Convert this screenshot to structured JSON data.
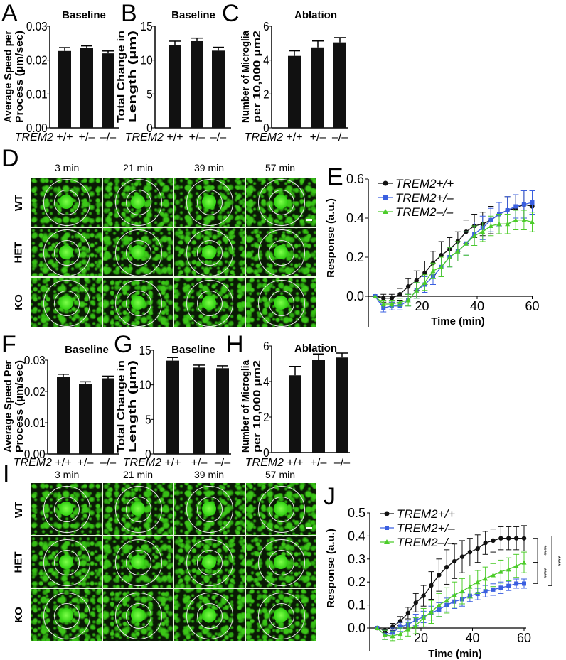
{
  "panel_letters": [
    "A",
    "B",
    "C",
    "D",
    "E",
    "F",
    "G",
    "H",
    "I",
    "J"
  ],
  "genotype_label": "TREM2",
  "genotypes": [
    "+/+",
    "+/–",
    "–/–"
  ],
  "image_panels": {
    "D": {
      "timepoints": [
        "3 min",
        "21 min",
        "39 min",
        "57 min"
      ],
      "rows": [
        "WT",
        "HET",
        "KO"
      ]
    },
    "I": {
      "timepoints": [
        "3 min",
        "21 min",
        "39 min",
        "57 min"
      ],
      "rows": [
        "WT",
        "HET",
        "KO"
      ]
    }
  },
  "colors": {
    "wt": "#111111",
    "het": "#3a5fe0",
    "ko": "#4ccc2a",
    "bar": "#111111"
  },
  "chart_data": [
    {
      "id": "A",
      "type": "bar",
      "title": "Baseline",
      "ylabel": [
        "Average Speed per",
        "Process (µm/sec)"
      ],
      "categories": [
        "+/+",
        "+/–",
        "–/–"
      ],
      "values": [
        0.0227,
        0.0235,
        0.022
      ],
      "errors": [
        0.001,
        0.0007,
        0.0007
      ],
      "ylim": [
        0,
        0.03
      ],
      "yticks": [
        "0.00",
        "0.01",
        "0.02",
        "0.03"
      ]
    },
    {
      "id": "B",
      "type": "bar",
      "title": "Baseline",
      "ylabel": [
        "Total Change in",
        "Length (µm)"
      ],
      "categories": [
        "+/+",
        "+/–",
        "–/–"
      ],
      "values": [
        12.2,
        12.8,
        11.4
      ],
      "errors": [
        0.6,
        0.45,
        0.5
      ],
      "ylim": [
        0,
        15
      ],
      "yticks": [
        "0",
        "5",
        "10",
        "15"
      ]
    },
    {
      "id": "C",
      "type": "bar",
      "title": "Ablation",
      "ylabel": [
        "Number of Microglia",
        "per 10,000 µm2"
      ],
      "categories": [
        "+/+",
        "+/–",
        "–/–"
      ],
      "values": [
        4.25,
        4.75,
        5.05
      ],
      "errors": [
        0.3,
        0.38,
        0.28
      ],
      "ylim": [
        0,
        6
      ],
      "yticks": [
        "0",
        "2",
        "4",
        "6"
      ]
    },
    {
      "id": "E",
      "type": "line",
      "xlabel": "Time (min)",
      "ylabel": "Response (a.u.)",
      "ylim": [
        -0.15,
        0.6
      ],
      "yticks": [
        "0.0",
        "0.2",
        "0.4",
        "0.6"
      ],
      "ytickvals": [
        0,
        0.2,
        0.4,
        0.6
      ],
      "xticks": [
        20,
        40,
        60
      ],
      "legend": "top-left",
      "x": [
        3,
        6,
        9,
        12,
        15,
        18,
        21,
        24,
        27,
        30,
        33,
        36,
        39,
        42,
        45,
        48,
        51,
        54,
        57,
        60
      ],
      "series": [
        {
          "name": "TREM2+/+",
          "marker": "circle",
          "values": [
            0,
            -0.01,
            -0.01,
            0.01,
            0.05,
            0.08,
            0.12,
            0.17,
            0.21,
            0.24,
            0.28,
            0.33,
            0.36,
            0.37,
            0.39,
            0.42,
            0.44,
            0.45,
            0.47,
            0.46
          ],
          "errors": [
            0,
            0.02,
            0.02,
            0.03,
            0.04,
            0.05,
            0.06,
            0.06,
            0.07,
            0.06,
            0.05,
            0.06,
            0.06,
            0.06,
            0.07,
            0.06,
            0.07,
            0.07,
            0.07,
            0.08
          ]
        },
        {
          "name": "TREM2+/–",
          "marker": "square",
          "values": [
            0,
            -0.06,
            -0.05,
            -0.05,
            -0.02,
            0.03,
            0.06,
            0.1,
            0.15,
            0.2,
            0.23,
            0.27,
            0.32,
            0.35,
            0.39,
            0.42,
            0.44,
            0.46,
            0.47,
            0.48
          ],
          "errors": [
            0,
            0.02,
            0.02,
            0.02,
            0.03,
            0.04,
            0.04,
            0.04,
            0.05,
            0.05,
            0.05,
            0.06,
            0.06,
            0.06,
            0.06,
            0.06,
            0.07,
            0.06,
            0.07,
            0.06
          ]
        },
        {
          "name": "TREM2–/–",
          "marker": "triangle",
          "values": [
            0,
            -0.04,
            -0.04,
            -0.03,
            -0.02,
            0.03,
            0.07,
            0.13,
            0.15,
            0.2,
            0.23,
            0.27,
            0.31,
            0.33,
            0.36,
            0.37,
            0.37,
            0.39,
            0.39,
            0.38
          ],
          "errors": [
            0,
            0.02,
            0.02,
            0.02,
            0.03,
            0.04,
            0.04,
            0.04,
            0.05,
            0.05,
            0.05,
            0.06,
            0.05,
            0.05,
            0.05,
            0.05,
            0.05,
            0.05,
            0.05,
            0.05
          ]
        }
      ]
    },
    {
      "id": "F",
      "type": "bar",
      "title": "Baseline",
      "ylabel": [
        "Average Speed Per",
        "Process (µm/sec)"
      ],
      "categories": [
        "+/+",
        "+/–",
        "–/–"
      ],
      "values": [
        0.0247,
        0.0224,
        0.0242
      ],
      "errors": [
        0.0008,
        0.0007,
        0.0007
      ],
      "ylim": [
        0,
        0.03
      ],
      "yticks": [
        "0.00",
        "0.01",
        "0.02",
        "0.03"
      ]
    },
    {
      "id": "G",
      "type": "bar",
      "title": "Baseline",
      "ylabel": [
        "Total Change in",
        "Length (µm)"
      ],
      "categories": [
        "+/+",
        "+/–",
        "–/–"
      ],
      "values": [
        13.5,
        12.5,
        12.4
      ],
      "errors": [
        0.45,
        0.35,
        0.35
      ],
      "ylim": [
        0,
        15
      ],
      "yticks": [
        "0",
        "5",
        "10",
        "15"
      ]
    },
    {
      "id": "H",
      "type": "bar",
      "title": "Ablation",
      "ylabel": [
        "Number of Microglia",
        "per 10,000 µm2"
      ],
      "categories": [
        "+/+",
        "+/–",
        "–/–"
      ],
      "values": [
        4.35,
        5.2,
        5.35
      ],
      "errors": [
        0.5,
        0.35,
        0.25
      ],
      "ylim": [
        0,
        6
      ],
      "yticks": [
        "0",
        "2",
        "4",
        "6"
      ]
    },
    {
      "id": "J",
      "type": "line",
      "xlabel": "Time (min)",
      "ylabel": "Response (a.u.)",
      "ylim": [
        -0.05,
        0.5
      ],
      "yticks": [
        "0.0",
        "0.1",
        "0.2",
        "0.3",
        "0.4",
        "0.5"
      ],
      "ytickvals": [
        0,
        0.1,
        0.2,
        0.3,
        0.4,
        0.5
      ],
      "xticks": [
        20,
        40,
        60
      ],
      "legend": "top-left",
      "x": [
        3,
        6,
        9,
        12,
        15,
        18,
        21,
        24,
        27,
        30,
        33,
        36,
        39,
        42,
        45,
        48,
        51,
        54,
        57,
        60
      ],
      "series": [
        {
          "name": "TREM2+/+",
          "marker": "circle",
          "values": [
            0,
            -0.01,
            0.005,
            0.03,
            0.065,
            0.11,
            0.14,
            0.185,
            0.23,
            0.265,
            0.29,
            0.31,
            0.33,
            0.345,
            0.37,
            0.38,
            0.39,
            0.39,
            0.39,
            0.39
          ],
          "errors": [
            0,
            0.01,
            0.015,
            0.02,
            0.025,
            0.04,
            0.045,
            0.06,
            0.07,
            0.075,
            0.075,
            0.07,
            0.06,
            0.06,
            0.05,
            0.05,
            0.05,
            0.05,
            0.05,
            0.055
          ]
        },
        {
          "name": "TREM2+/–",
          "marker": "square",
          "values": [
            0,
            -0.03,
            -0.02,
            0.005,
            0.015,
            0.035,
            0.048,
            0.065,
            0.08,
            0.1,
            0.115,
            0.125,
            0.14,
            0.148,
            0.16,
            0.167,
            0.175,
            0.183,
            0.193,
            0.193
          ],
          "errors": [
            0,
            0.02,
            0.02,
            0.02,
            0.02,
            0.025,
            0.025,
            0.03,
            0.03,
            0.03,
            0.03,
            0.03,
            0.025,
            0.025,
            0.025,
            0.025,
            0.025,
            0.02,
            0.02,
            0.02
          ]
        },
        {
          "name": "TREM2–/–",
          "marker": "triangle",
          "values": [
            0,
            -0.03,
            -0.035,
            -0.025,
            -0.005,
            0.01,
            0.045,
            0.07,
            0.1,
            0.12,
            0.145,
            0.16,
            0.18,
            0.2,
            0.215,
            0.23,
            0.245,
            0.255,
            0.27,
            0.285
          ],
          "errors": [
            0,
            0.02,
            0.02,
            0.025,
            0.03,
            0.035,
            0.04,
            0.05,
            0.05,
            0.055,
            0.055,
            0.055,
            0.05,
            0.05,
            0.05,
            0.05,
            0.05,
            0.05,
            0.05,
            0.045
          ]
        }
      ],
      "significance": [
        "****",
        "****",
        "****"
      ]
    }
  ]
}
